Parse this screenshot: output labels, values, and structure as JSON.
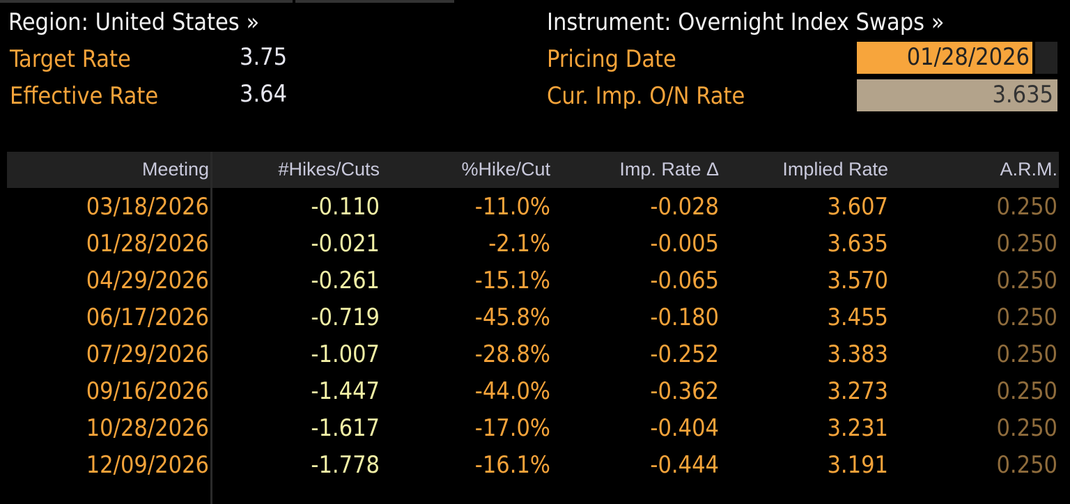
{
  "header": {
    "region": "Region: United States »",
    "instrument": "Instrument: Overnight Index Swaps »",
    "target_rate_label": "Target Rate",
    "target_rate": "3.75",
    "effective_rate_label": "Effective Rate",
    "effective_rate": "3.64",
    "pricing_date_label": "Pricing Date",
    "pricing_date": "01/28/2026",
    "cur_imp_label": "Cur. Imp. O/N Rate",
    "cur_imp": "3.635"
  },
  "table": {
    "columns": [
      "Meeting",
      "#Hikes/Cuts",
      "%Hike/Cut",
      "Imp. Rate Δ",
      "Implied Rate",
      "A.R.M."
    ],
    "rows": [
      [
        "03/18/2026",
        "-0.110",
        "-11.0%",
        "-0.028",
        "3.607",
        "0.250"
      ],
      [
        "01/28/2026",
        "-0.021",
        "-2.1%",
        "-0.005",
        "3.635",
        "0.250"
      ],
      [
        "04/29/2026",
        "-0.261",
        "-15.1%",
        "-0.065",
        "3.570",
        "0.250"
      ],
      [
        "06/17/2026",
        "-0.719",
        "-45.8%",
        "-0.180",
        "3.455",
        "0.250"
      ],
      [
        "07/29/2026",
        "-1.007",
        "-28.8%",
        "-0.252",
        "3.383",
        "0.250"
      ],
      [
        "09/16/2026",
        "-1.447",
        "-44.0%",
        "-0.362",
        "3.273",
        "0.250"
      ],
      [
        "10/28/2026",
        "-1.617",
        "-17.0%",
        "-0.404",
        "3.231",
        "0.250"
      ],
      [
        "12/09/2026",
        "-1.778",
        "-16.1%",
        "-0.444",
        "3.191",
        "0.250"
      ]
    ]
  }
}
